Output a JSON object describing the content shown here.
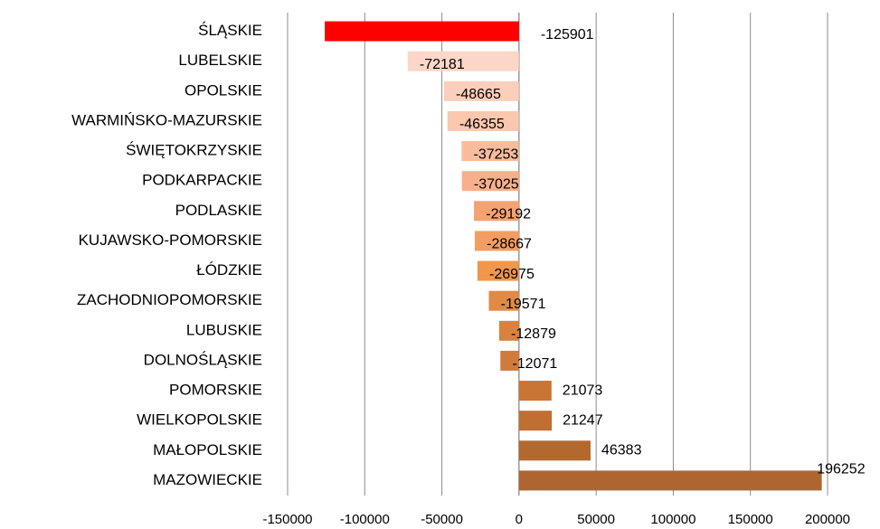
{
  "chart_data": {
    "type": "hbar",
    "categories": [
      "ŚLĄSKIE",
      "LUBELSKIE",
      "OPOLSKIE",
      "WARMIŃSKO-MAZURSKIE",
      "ŚWIĘTOKRZYSKIE",
      "PODKARPACKIE",
      "PODLASKIE",
      "KUJAWSKO-POMORSKIE",
      "ŁÓDZKIE",
      "ZACHODNIOPOMORSKIE",
      "LUBUSKIE",
      "DOLNOŚLĄSKIE",
      "POMORSKIE",
      "WIELKOPOLSKIE",
      "MAŁOPOLSKIE",
      "MAZOWIECKIE"
    ],
    "values": [
      -125901,
      -72181,
      -48665,
      -46355,
      -37253,
      -37025,
      -29192,
      -28667,
      -26975,
      -19571,
      -12879,
      -12071,
      21073,
      21247,
      46383,
      196252
    ],
    "colors": [
      "#ff0000",
      "#fcd6c7",
      "#fbcfbb",
      "#fac7af",
      "#f8bb9c",
      "#f7b08b",
      "#f5a271",
      "#f49d63",
      "#f0964d",
      "#e08a46",
      "#d98240",
      "#d07b3c",
      "#c97535",
      "#c06e32",
      "#b3692e",
      "#ae6630"
    ],
    "xlim": [
      -150000,
      200000
    ],
    "xticks": [
      -150000,
      -100000,
      -50000,
      0,
      50000,
      100000,
      150000,
      200000
    ],
    "grid": true
  }
}
